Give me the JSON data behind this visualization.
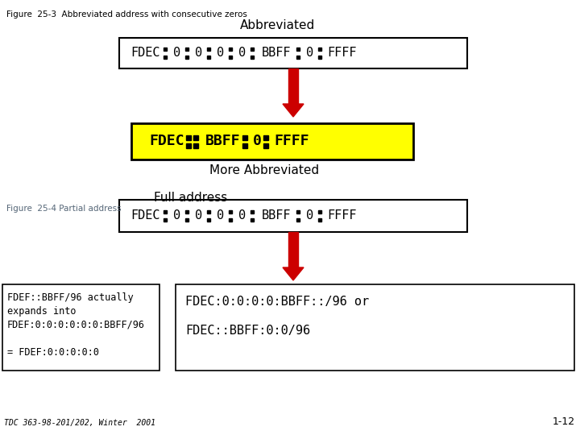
{
  "fig_title": "Figure  25-3  Abbreviated address with consecutive zeros",
  "fig25_4_label": "Figure  25-4 Partial address",
  "bottom_credit": "TDC 363-98-201/202, Winter  2001",
  "bottom_right": "1-12",
  "box1_label": "Abbreviated",
  "box1_segments": [
    "FDEC",
    "0",
    "0",
    "0",
    "0",
    "BBFF",
    "0",
    "FFFF"
  ],
  "box1_bg": "#ffffff",
  "box1_border": "#000000",
  "arrow1_color": "#cc0000",
  "box2_label": "More Abbreviated",
  "box2_segments": [
    "FDEC",
    "::",
    "BBFF",
    "0",
    "FFFF"
  ],
  "box2_bg": "#ffff00",
  "box2_border": "#000000",
  "box3_label": "Full address",
  "box3_segments": [
    "FDEC",
    "0",
    "0",
    "0",
    "0",
    "BBFF",
    "0",
    "FFFF"
  ],
  "box3_bg": "#ffffff",
  "box3_border": "#000000",
  "arrow2_color": "#cc0000",
  "left_box_lines": [
    "FDEF::BBFF/96 actually",
    "expands into",
    "FDEF:0:0:0:0:0:0:BBFF/96",
    "",
    "= FDEF:0:0:0:0:0"
  ],
  "right_box_line1": "FDEC:0:0:0:0:BBFF::/96 or",
  "right_box_line2": "FDEC::BBFF:0:0/96"
}
